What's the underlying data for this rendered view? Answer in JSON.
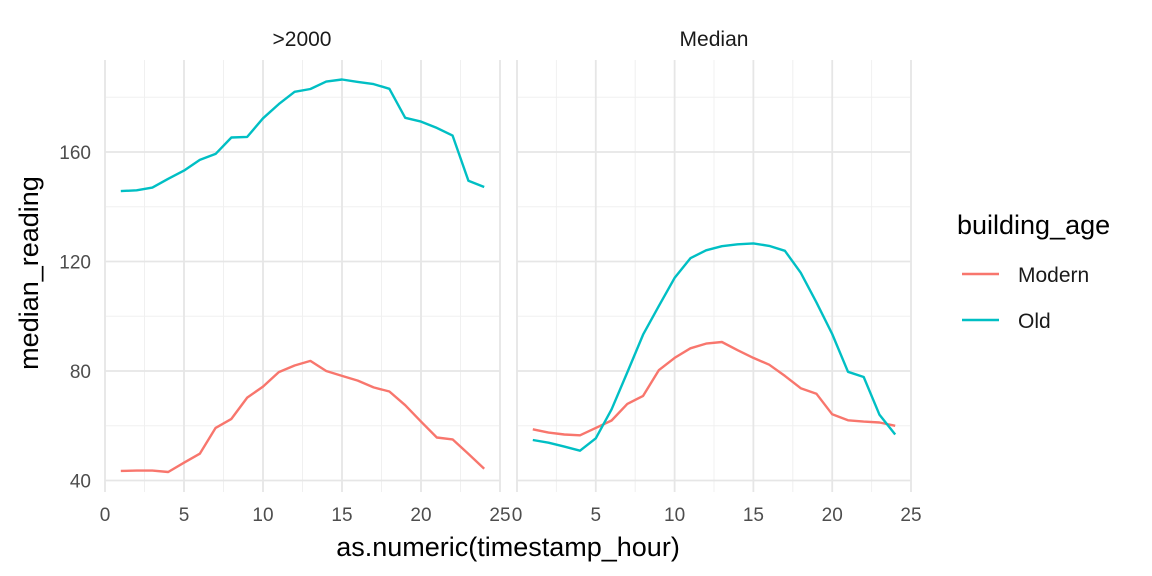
{
  "chart_data": {
    "type": "line",
    "xlabel": "as.numeric(timestamp_hour)",
    "ylabel": "median_reading",
    "legend": {
      "title": "building_age",
      "position": "right",
      "entries": [
        {
          "name": "Modern",
          "color": "#F8766D"
        },
        {
          "name": "Old",
          "color": "#00BFC4"
        }
      ]
    },
    "xlim": [
      0,
      25
    ],
    "ylim": [
      40,
      188
    ],
    "x_ticks": [
      0,
      5,
      10,
      15,
      20,
      25
    ],
    "x_tick_labels_left": [
      "0",
      "5",
      "10",
      "15",
      "20",
      "25"
    ],
    "x_tick_labels_right": [
      "0",
      "5",
      "10",
      "15",
      "20",
      "25"
    ],
    "y_ticks": [
      40,
      80,
      120,
      160
    ],
    "y_tick_labels": [
      "40",
      "80",
      "120",
      "160"
    ],
    "grid": true,
    "panels": [
      {
        "title": ">2000",
        "series": [
          {
            "name": "Modern",
            "color": "#F8766D",
            "x": [
              1,
              2,
              3,
              4,
              5,
              6,
              7,
              8,
              9,
              10,
              11,
              12,
              13,
              14,
              15,
              16,
              17,
              18,
              19,
              20,
              21,
              22,
              23,
              24
            ],
            "values": [
              43.5,
              43.6,
              43.6,
              43.1,
              46.5,
              49.8,
              59.2,
              62.5,
              70.3,
              74.3,
              79.6,
              82.0,
              83.7,
              80.0,
              78.2,
              76.5,
              74.0,
              72.5,
              67.5,
              61.5,
              55.7,
              55.0,
              49.7,
              44.3
            ]
          },
          {
            "name": "Old",
            "color": "#00BFC4",
            "x": [
              1,
              2,
              3,
              4,
              5,
              6,
              7,
              8,
              9,
              10,
              11,
              12,
              13,
              14,
              15,
              16,
              17,
              18,
              19,
              20,
              21,
              22,
              23,
              24
            ],
            "values": [
              145.7,
              146.0,
              147.0,
              150.2,
              153.2,
              157.1,
              159.3,
              165.3,
              165.5,
              172.3,
              177.5,
              182.0,
              183.0,
              185.7,
              186.5,
              185.6,
              184.8,
              183.1,
              172.5,
              171.1,
              168.8,
              166.0,
              149.5,
              147.2
            ]
          }
        ]
      },
      {
        "title": "Median",
        "series": [
          {
            "name": "Modern",
            "color": "#F8766D",
            "x": [
              1,
              2,
              3,
              4,
              5,
              6,
              7,
              8,
              9,
              10,
              11,
              12,
              13,
              14,
              15,
              16,
              17,
              18,
              19,
              20,
              21,
              22,
              23,
              24
            ],
            "values": [
              58.7,
              57.5,
              56.8,
              56.5,
              59.2,
              61.9,
              68.0,
              70.9,
              80.3,
              84.8,
              88.3,
              90.0,
              90.6,
              87.6,
              84.8,
              82.3,
              78.2,
              73.7,
              71.7,
              64.2,
              62.0,
              61.5,
              61.2,
              60.0
            ]
          },
          {
            "name": "Old",
            "color": "#00BFC4",
            "x": [
              1,
              2,
              3,
              4,
              5,
              6,
              7,
              8,
              9,
              10,
              11,
              12,
              13,
              14,
              15,
              16,
              17,
              18,
              19,
              20,
              21,
              22,
              23,
              24
            ],
            "values": [
              54.8,
              53.8,
              52.4,
              50.9,
              55.4,
              66.0,
              79.5,
              93.3,
              103.7,
              114.0,
              121.2,
              124.1,
              125.6,
              126.3,
              126.6,
              125.7,
              123.9,
              115.9,
              105.1,
              93.5,
              79.7,
              77.8,
              64.0,
              56.8
            ]
          }
        ]
      }
    ]
  }
}
